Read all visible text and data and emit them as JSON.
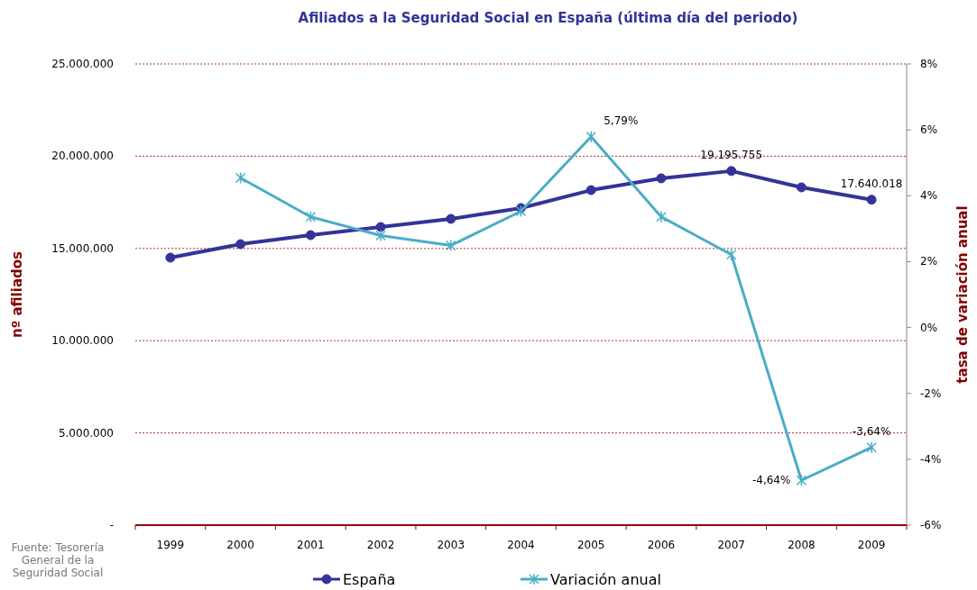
{
  "chart_data": {
    "type": "line",
    "title": "Afiliados a la Seguridad Social en España (última día del periodo)",
    "ylabel": "nº afiliados",
    "y2label": "tasa de variación anual",
    "categories": [
      "1999",
      "2000",
      "2001",
      "2002",
      "2003",
      "2004",
      "2005",
      "2006",
      "2007",
      "2008",
      "2009"
    ],
    "series": [
      {
        "name": "España",
        "color": "#333399",
        "marker": "circle",
        "values": [
          14500000,
          15230000,
          15720000,
          16160000,
          16600000,
          17190000,
          18160000,
          18800000,
          19195755,
          18310000,
          17640018
        ],
        "value_labels": [
          null,
          null,
          null,
          null,
          null,
          null,
          null,
          null,
          "19.195.755",
          null,
          "17.640.018"
        ]
      },
      {
        "name": "Variación anual",
        "color": "#4bacc6",
        "marker": "cross",
        "axis": "y2",
        "values": [
          null,
          4.54,
          3.36,
          2.79,
          2.49,
          3.53,
          5.79,
          3.36,
          2.21,
          -4.64,
          -3.64
        ],
        "value_labels": [
          null,
          null,
          null,
          null,
          null,
          null,
          "5,79%",
          null,
          null,
          "-4,64%",
          "-3,64%"
        ]
      }
    ],
    "ylim": [
      0,
      25000000
    ],
    "yticks": [
      {
        "value": 0,
        "label": "-"
      },
      {
        "value": 5000000,
        "label": "5.000.000"
      },
      {
        "value": 10000000,
        "label": "10.000.000"
      },
      {
        "value": 15000000,
        "label": "15.000.000"
      },
      {
        "value": 20000000,
        "label": "20.000.000"
      },
      {
        "value": 25000000,
        "label": "25.000.000"
      }
    ],
    "y2lim": [
      -6,
      8
    ],
    "y2ticks": [
      {
        "value": -6,
        "label": "-6%"
      },
      {
        "value": -4,
        "label": "-4%"
      },
      {
        "value": -2,
        "label": "-2%"
      },
      {
        "value": 0,
        "label": "0%"
      },
      {
        "value": 2,
        "label": "2%"
      },
      {
        "value": 4,
        "label": "4%"
      },
      {
        "value": 6,
        "label": "6%"
      },
      {
        "value": 8,
        "label": "8%"
      }
    ],
    "grid": "y",
    "legend": "bottom",
    "annotations": [
      "Fuente: Tesorería General de la Seguridad Social"
    ]
  }
}
